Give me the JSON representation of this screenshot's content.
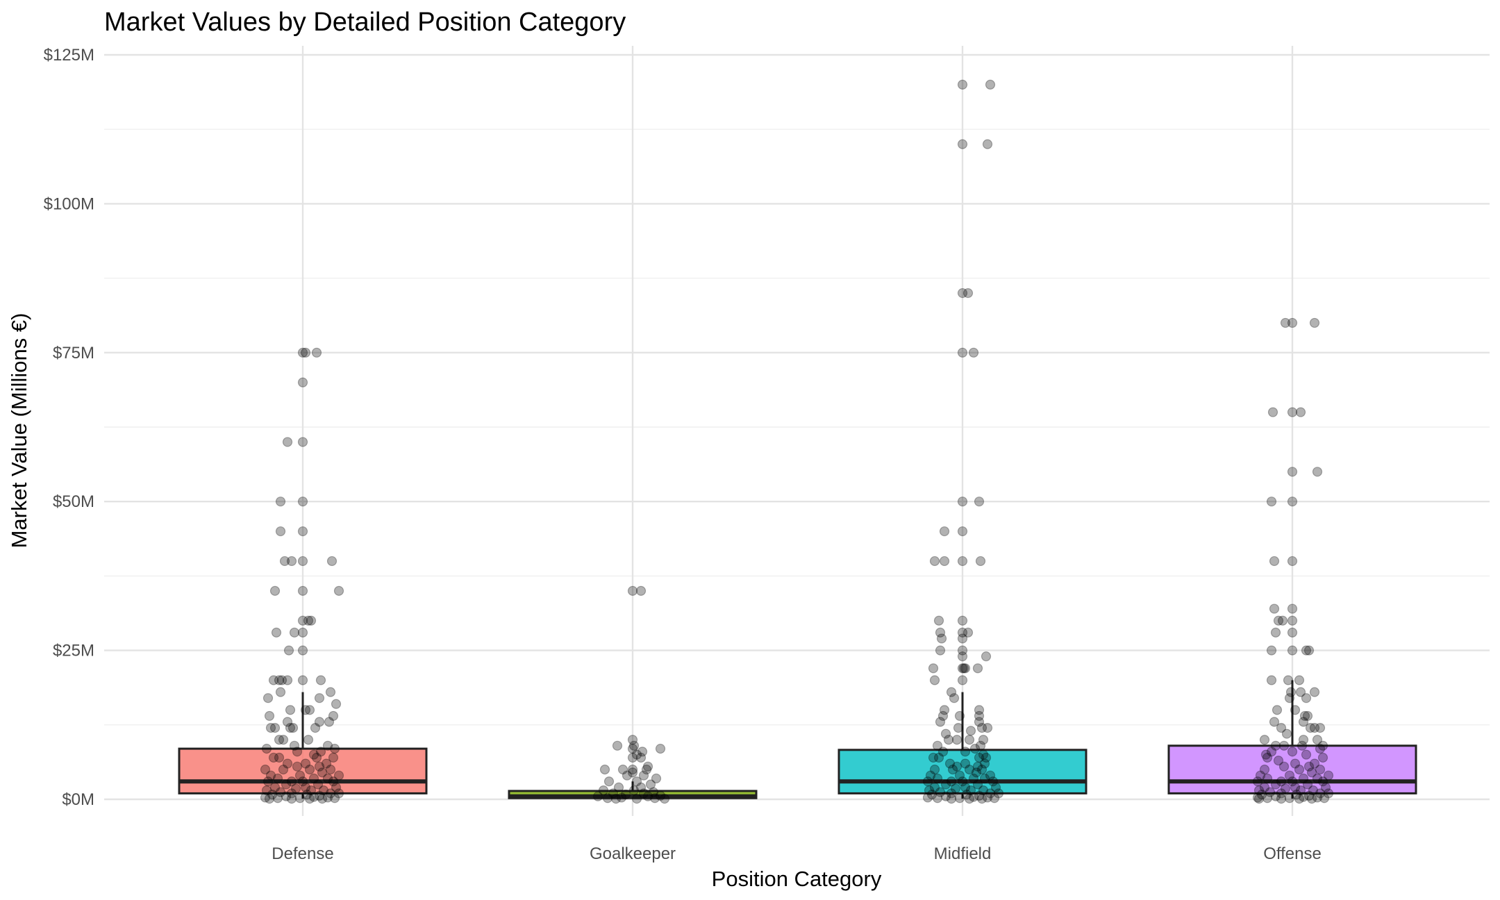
{
  "chart_data": {
    "type": "box",
    "title": "Market Values by Detailed Position Category",
    "xlabel": "Position Category",
    "ylabel": "Market Value (Millions €)",
    "ylim": [
      -4,
      125
    ],
    "y_ticks": [
      0,
      25,
      50,
      75,
      100,
      125
    ],
    "y_tick_labels": [
      "$0M",
      "$25M",
      "$50M",
      "$75M",
      "$100M",
      "$125M"
    ],
    "grid": true,
    "legend": "none",
    "categories": [
      "Defense",
      "Goalkeeper",
      "Midfield",
      "Offense"
    ],
    "colors": [
      "#F8766D",
      "#7CAE00",
      "#00BFC4",
      "#C77CFF"
    ],
    "boxes": [
      {
        "category": "Defense",
        "q1": 1,
        "median": 3,
        "q3": 8.5,
        "whisker_low": 0.1,
        "whisker_high": 18
      },
      {
        "category": "Goalkeeper",
        "q1": 0.2,
        "median": 0.5,
        "q3": 1.4,
        "whisker_low": 0.05,
        "whisker_high": 3
      },
      {
        "category": "Midfield",
        "q1": 1,
        "median": 3,
        "q3": 8.3,
        "whisker_low": 0.1,
        "whisker_high": 18
      },
      {
        "category": "Offense",
        "q1": 1,
        "median": 3,
        "q3": 9,
        "whisker_low": 0.1,
        "whisker_high": 20
      }
    ],
    "points": {
      "Defense": [
        [
          0,
          75
        ],
        [
          0.02,
          75
        ],
        [
          0.1,
          75
        ],
        [
          0,
          70
        ],
        [
          -0.11,
          60
        ],
        [
          0,
          60
        ],
        [
          0,
          50
        ],
        [
          -0.16,
          50
        ],
        [
          0,
          45
        ],
        [
          -0.16,
          45
        ],
        [
          0,
          40
        ],
        [
          -0.13,
          40
        ],
        [
          -0.08,
          40
        ],
        [
          0.21,
          40
        ],
        [
          0,
          35
        ],
        [
          -0.2,
          35
        ],
        [
          0.26,
          35
        ],
        [
          0.04,
          30
        ],
        [
          0.06,
          30
        ],
        [
          0,
          30
        ],
        [
          0,
          28
        ],
        [
          -0.19,
          28
        ],
        [
          -0.06,
          28
        ],
        [
          -0.1,
          25
        ],
        [
          0,
          25
        ],
        [
          0,
          20
        ],
        [
          -0.17,
          20
        ],
        [
          -0.21,
          20
        ],
        [
          -0.15,
          20
        ],
        [
          -0.11,
          20
        ],
        [
          0.13,
          20
        ],
        [
          0.02,
          15
        ],
        [
          -0.09,
          15
        ],
        [
          0.05,
          15
        ],
        [
          -0.16,
          18
        ],
        [
          0.2,
          18
        ],
        [
          0.12,
          17
        ],
        [
          0.24,
          16
        ],
        [
          -0.25,
          17
        ],
        [
          -0.24,
          14
        ],
        [
          0.22,
          14
        ],
        [
          0.12,
          13
        ],
        [
          -0.11,
          13
        ],
        [
          0.19,
          13
        ],
        [
          -0.23,
          12
        ],
        [
          -0.2,
          12
        ],
        [
          -0.09,
          12
        ],
        [
          -0.07,
          12
        ],
        [
          0.09,
          12
        ],
        [
          0.04,
          10
        ],
        [
          -0.17,
          10
        ],
        [
          -0.14,
          10
        ],
        [
          -0.06,
          9
        ],
        [
          0.18,
          9
        ],
        [
          0.23,
          8.5
        ],
        [
          -0.26,
          8.5
        ],
        [
          0.13,
          8
        ],
        [
          -0.04,
          8
        ],
        [
          0.08,
          7.5
        ],
        [
          -0.21,
          7
        ],
        [
          -0.17,
          7
        ],
        [
          0.1,
          7
        ],
        [
          0.22,
          7
        ],
        [
          -0.11,
          6
        ],
        [
          0.02,
          6
        ],
        [
          0.17,
          6
        ],
        [
          -0.04,
          5.5
        ],
        [
          0.12,
          5.5
        ],
        [
          0.2,
          5
        ],
        [
          -0.27,
          5
        ],
        [
          -0.14,
          5
        ],
        [
          0.05,
          5
        ],
        [
          0.14,
          4.5
        ],
        [
          -0.23,
          4
        ],
        [
          -0.02,
          4
        ],
        [
          0.26,
          4
        ],
        [
          0.08,
          3.5
        ],
        [
          -0.18,
          3.5
        ],
        [
          0.18,
          3.5
        ],
        [
          -0.08,
          3
        ],
        [
          0,
          3
        ],
        [
          0.22,
          3
        ],
        [
          -0.25,
          3
        ],
        [
          -0.12,
          2.5
        ],
        [
          0.11,
          2.5
        ],
        [
          0.02,
          2
        ],
        [
          -0.2,
          2
        ],
        [
          0.24,
          2
        ],
        [
          -0.05,
          1.8
        ],
        [
          0.15,
          1.5
        ],
        [
          -0.26,
          1.5
        ],
        [
          0.06,
          1.5
        ],
        [
          -0.16,
          1.2
        ],
        [
          0.2,
          1
        ],
        [
          -0.08,
          1
        ],
        [
          0.26,
          1
        ],
        [
          0.03,
          0.8
        ],
        [
          -0.22,
          0.8
        ],
        [
          0.12,
          0.6
        ],
        [
          -0.12,
          0.5
        ],
        [
          0.08,
          0.4
        ],
        [
          -0.27,
          0.3
        ],
        [
          0.18,
          0.3
        ],
        [
          -0.02,
          0.2
        ],
        [
          0.23,
          0.2
        ],
        [
          -0.18,
          0.2
        ],
        [
          0.05,
          0.1
        ],
        [
          -0.08,
          0.1
        ],
        [
          0.14,
          0.1
        ],
        [
          -0.24,
          0.1
        ]
      ],
      "Goalkeeper": [
        [
          0,
          35
        ],
        [
          0.06,
          35
        ],
        [
          0,
          10
        ],
        [
          0.01,
          9
        ],
        [
          -0.11,
          9
        ],
        [
          0,
          8.5
        ],
        [
          0.07,
          8
        ],
        [
          0.2,
          8.5
        ],
        [
          0.03,
          7.5
        ],
        [
          0.06,
          7
        ],
        [
          0,
          7
        ],
        [
          0.11,
          5.5
        ],
        [
          0.1,
          5
        ],
        [
          0,
          5
        ],
        [
          -0.2,
          5
        ],
        [
          -0.07,
          5
        ],
        [
          0,
          4.5
        ],
        [
          -0.04,
          4
        ],
        [
          0.08,
          4
        ],
        [
          0.17,
          3.5
        ],
        [
          -0.17,
          3
        ],
        [
          0.03,
          3
        ],
        [
          0.13,
          2.5
        ],
        [
          -0.1,
          2
        ],
        [
          0.06,
          2
        ],
        [
          -0.21,
          1.5
        ],
        [
          0.01,
          1.5
        ],
        [
          0.15,
          1.2
        ],
        [
          -0.14,
          1
        ],
        [
          0.08,
          1
        ],
        [
          -0.05,
          0.8
        ],
        [
          0.2,
          0.6
        ],
        [
          -0.25,
          0.5
        ],
        [
          0.11,
          0.5
        ],
        [
          -0.08,
          0.3
        ],
        [
          0.16,
          0.2
        ],
        [
          -0.18,
          0.2
        ],
        [
          0.03,
          0.1
        ],
        [
          -0.12,
          0.1
        ],
        [
          0.23,
          0.1
        ]
      ],
      "Midfield": [
        [
          0,
          120
        ],
        [
          0.2,
          120
        ],
        [
          0,
          110
        ],
        [
          0.18,
          110
        ],
        [
          0,
          85
        ],
        [
          0.04,
          85
        ],
        [
          0,
          75
        ],
        [
          0.08,
          75
        ],
        [
          0,
          50
        ],
        [
          0.12,
          50
        ],
        [
          0,
          45
        ],
        [
          -0.13,
          45
        ],
        [
          0,
          40
        ],
        [
          -0.2,
          40
        ],
        [
          -0.13,
          40
        ],
        [
          0.13,
          40
        ],
        [
          0,
          30
        ],
        [
          -0.17,
          30
        ],
        [
          0,
          28
        ],
        [
          -0.16,
          28
        ],
        [
          0.04,
          28
        ],
        [
          0,
          27
        ],
        [
          -0.15,
          27
        ],
        [
          0,
          25
        ],
        [
          -0.16,
          25
        ],
        [
          0,
          24
        ],
        [
          0.17,
          24
        ],
        [
          0,
          22
        ],
        [
          0.01,
          22
        ],
        [
          -0.21,
          22
        ],
        [
          0.11,
          22
        ],
        [
          0.02,
          22
        ],
        [
          0,
          20
        ],
        [
          -0.2,
          20
        ],
        [
          -0.08,
          18
        ],
        [
          -0.06,
          17
        ],
        [
          -0.13,
          15
        ],
        [
          0.12,
          15
        ],
        [
          -0.14,
          14
        ],
        [
          0.12,
          14
        ],
        [
          -0.02,
          14
        ],
        [
          0.12,
          13
        ],
        [
          -0.16,
          13
        ],
        [
          0.14,
          12
        ],
        [
          0.18,
          12
        ],
        [
          -0.03,
          12
        ],
        [
          0.06,
          11.5
        ],
        [
          -0.12,
          11
        ],
        [
          -0.1,
          10
        ],
        [
          0.15,
          10
        ],
        [
          -0.04,
          10
        ],
        [
          0.05,
          10
        ],
        [
          0.13,
          9
        ],
        [
          -0.18,
          9
        ],
        [
          0.09,
          8.5
        ],
        [
          -0.14,
          8
        ],
        [
          0.02,
          8
        ],
        [
          0.15,
          7.5
        ],
        [
          -0.21,
          7
        ],
        [
          -0.17,
          7
        ],
        [
          0.12,
          7
        ],
        [
          0.17,
          7
        ],
        [
          -0.09,
          6
        ],
        [
          0.02,
          6
        ],
        [
          0.16,
          6
        ],
        [
          -0.04,
          5.5
        ],
        [
          0.11,
          5.5
        ],
        [
          0.14,
          5
        ],
        [
          -0.2,
          5
        ],
        [
          -0.07,
          5
        ],
        [
          0.05,
          5
        ],
        [
          0.1,
          4.5
        ],
        [
          -0.23,
          4
        ],
        [
          -0.02,
          4
        ],
        [
          0.2,
          4
        ],
        [
          0.08,
          3.5
        ],
        [
          -0.18,
          3.5
        ],
        [
          0.16,
          3.5
        ],
        [
          -0.08,
          3
        ],
        [
          0,
          3
        ],
        [
          0.22,
          3
        ],
        [
          -0.25,
          3
        ],
        [
          -0.12,
          2.5
        ],
        [
          0.11,
          2.5
        ],
        [
          0.02,
          2
        ],
        [
          -0.2,
          2
        ],
        [
          0.24,
          2
        ],
        [
          -0.05,
          1.8
        ],
        [
          0.15,
          1.5
        ],
        [
          -0.24,
          1.5
        ],
        [
          0.06,
          1.5
        ],
        [
          -0.16,
          1.2
        ],
        [
          0.2,
          1
        ],
        [
          -0.08,
          1
        ],
        [
          0.26,
          1
        ],
        [
          0.03,
          0.8
        ],
        [
          -0.22,
          0.8
        ],
        [
          0.12,
          0.6
        ],
        [
          -0.12,
          0.5
        ],
        [
          0.08,
          0.4
        ],
        [
          -0.25,
          0.3
        ],
        [
          0.18,
          0.3
        ],
        [
          -0.02,
          0.2
        ],
        [
          0.23,
          0.2
        ],
        [
          -0.18,
          0.2
        ],
        [
          0.05,
          0.1
        ],
        [
          -0.08,
          0.1
        ],
        [
          0.14,
          0.1
        ]
      ],
      "Offense": [
        [
          -0.05,
          80
        ],
        [
          0,
          80
        ],
        [
          0.16,
          80
        ],
        [
          0,
          65
        ],
        [
          -0.14,
          65
        ],
        [
          0.06,
          65
        ],
        [
          0,
          55
        ],
        [
          0.18,
          55
        ],
        [
          0,
          50
        ],
        [
          -0.15,
          50
        ],
        [
          0,
          40
        ],
        [
          -0.13,
          40
        ],
        [
          0,
          32
        ],
        [
          -0.13,
          32
        ],
        [
          0,
          30
        ],
        [
          -0.1,
          30
        ],
        [
          -0.07,
          30
        ],
        [
          0,
          28
        ],
        [
          -0.12,
          28
        ],
        [
          0,
          25
        ],
        [
          -0.15,
          25
        ],
        [
          0.1,
          25
        ],
        [
          0.12,
          25
        ],
        [
          -0.15,
          20
        ],
        [
          -0.03,
          20
        ],
        [
          0.05,
          20
        ],
        [
          -0.11,
          15
        ],
        [
          0.02,
          15
        ],
        [
          -0.02,
          17
        ],
        [
          0.1,
          17
        ],
        [
          0.06,
          18
        ],
        [
          -0.01,
          18
        ],
        [
          0.16,
          18
        ],
        [
          0.09,
          14
        ],
        [
          0.11,
          14
        ],
        [
          -0.13,
          13
        ],
        [
          0.08,
          13
        ],
        [
          0.13,
          12
        ],
        [
          -0.08,
          12
        ],
        [
          0.16,
          12
        ],
        [
          0.2,
          12
        ],
        [
          -0.04,
          11
        ],
        [
          -0.2,
          10
        ],
        [
          0.08,
          10
        ],
        [
          0.18,
          10
        ],
        [
          -0.12,
          9
        ],
        [
          -0.06,
          9
        ],
        [
          0.07,
          9
        ],
        [
          0.22,
          9
        ],
        [
          0.2,
          8.5
        ],
        [
          -0.15,
          8
        ],
        [
          0,
          8
        ],
        [
          -0.19,
          7.5
        ],
        [
          0.1,
          7.5
        ],
        [
          0.22,
          7
        ],
        [
          -0.18,
          7
        ],
        [
          -0.1,
          6.5
        ],
        [
          0.02,
          6
        ],
        [
          0.16,
          6
        ],
        [
          -0.06,
          5.5
        ],
        [
          0.12,
          5.5
        ],
        [
          0.2,
          5
        ],
        [
          -0.2,
          5
        ],
        [
          0.05,
          5
        ],
        [
          0.14,
          4.5
        ],
        [
          -0.23,
          4
        ],
        [
          -0.02,
          4
        ],
        [
          0.26,
          4
        ],
        [
          0.08,
          3.5
        ],
        [
          -0.18,
          3.5
        ],
        [
          0.18,
          3.5
        ],
        [
          -0.08,
          3
        ],
        [
          0,
          3
        ],
        [
          0.22,
          3
        ],
        [
          -0.25,
          3
        ],
        [
          -0.12,
          2.5
        ],
        [
          0.11,
          2.5
        ],
        [
          0.02,
          2
        ],
        [
          -0.2,
          2
        ],
        [
          0.24,
          2
        ],
        [
          -0.05,
          1.8
        ],
        [
          0.15,
          1.5
        ],
        [
          -0.24,
          1.5
        ],
        [
          0.06,
          1.5
        ],
        [
          -0.16,
          1.2
        ],
        [
          0.2,
          1
        ],
        [
          -0.08,
          1
        ],
        [
          0.26,
          1
        ],
        [
          0.03,
          0.8
        ],
        [
          -0.22,
          0.8
        ],
        [
          0.12,
          0.6
        ],
        [
          -0.12,
          0.5
        ],
        [
          0.08,
          0.4
        ],
        [
          -0.25,
          0.3
        ],
        [
          0.18,
          0.3
        ],
        [
          -0.02,
          0.2
        ],
        [
          0.23,
          0.2
        ],
        [
          -0.18,
          0.2
        ],
        [
          0.05,
          0.1
        ],
        [
          -0.08,
          0.1
        ],
        [
          0.14,
          0.1
        ],
        [
          -0.24,
          0.1
        ]
      ]
    }
  }
}
